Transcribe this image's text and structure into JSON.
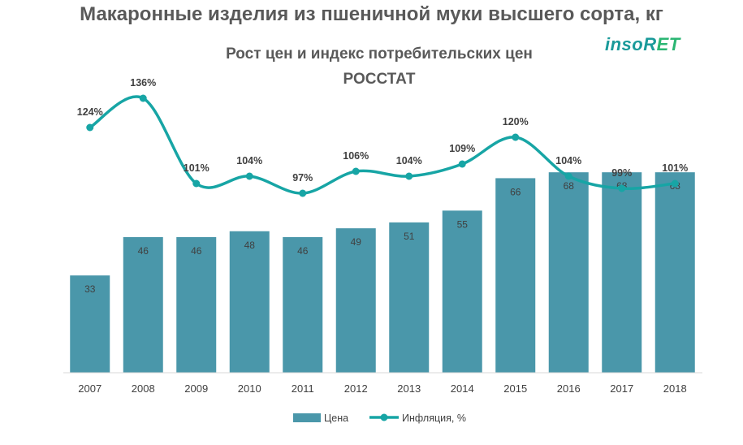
{
  "header": {
    "title": "Макаронные изделия из пшеничной муки высшего сорта, кг",
    "logo_part1": "insoR",
    "logo_part2": "ET"
  },
  "chart_data": {
    "type": "bar",
    "title": "Рост цен и индекс потребительских цен",
    "subtitle": "РОССТАТ",
    "categories": [
      "2007",
      "2008",
      "2009",
      "2010",
      "2011",
      "2012",
      "2013",
      "2014",
      "2015",
      "2016",
      "2017",
      "2018"
    ],
    "series": [
      {
        "name": "Цена",
        "type": "bar",
        "color": "#4a97aa",
        "values": [
          33,
          46,
          46,
          48,
          46,
          49,
          51,
          55,
          66,
          68,
          68,
          68
        ]
      },
      {
        "name": "Инфляция, %",
        "type": "line",
        "color": "#17a5a5",
        "values": [
          124,
          136,
          101,
          104,
          97,
          106,
          104,
          109,
          120,
          104,
          99,
          101
        ],
        "labels": [
          "124%",
          "136%",
          "101%",
          "104%",
          "97%",
          "106%",
          "104%",
          "109%",
          "120%",
          "104%",
          "99%",
          "101%"
        ]
      }
    ],
    "legend_position": "bottom"
  }
}
